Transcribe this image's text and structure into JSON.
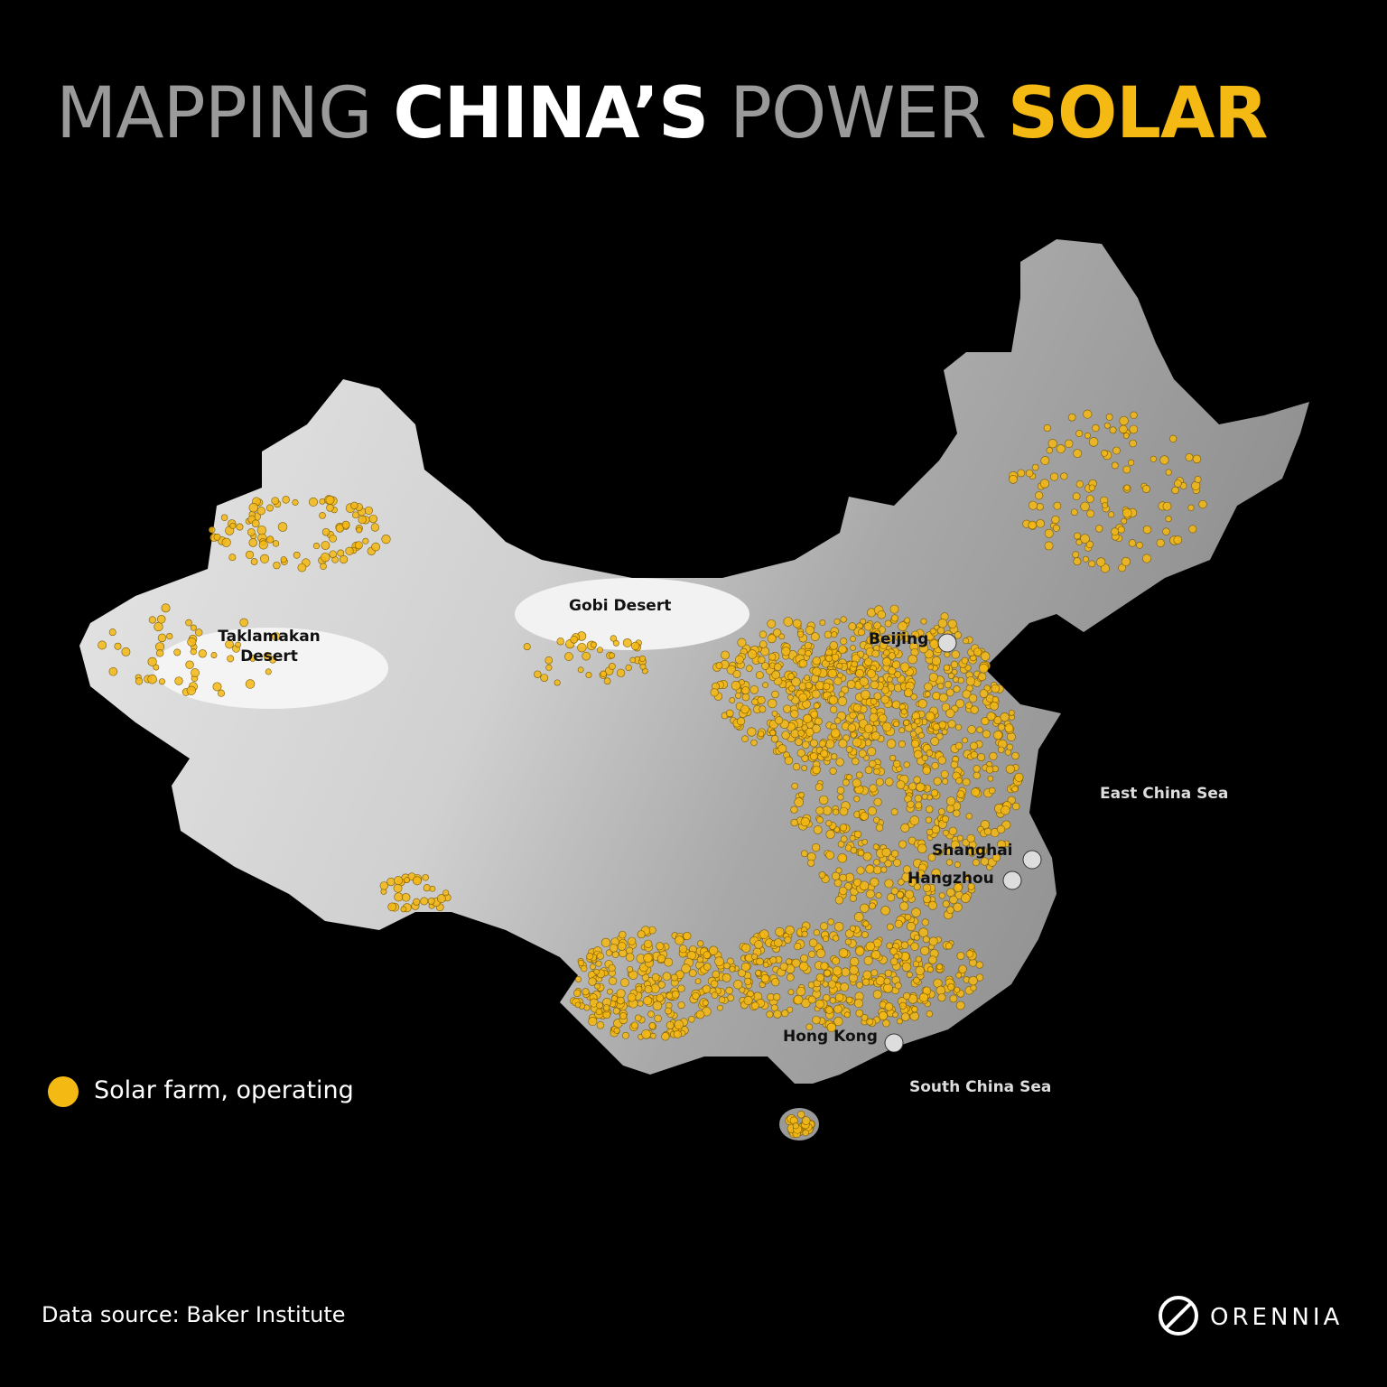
{
  "title": {
    "part1": "MAPPING",
    "part2": "CHINA’S",
    "part3": "POWER",
    "part4": "SOLAR"
  },
  "labels": {
    "taklamakan": "Taklamakan\nDesert",
    "gobi": "Gobi Desert",
    "beijing": "Beijing",
    "shanghai": "Shanghai",
    "hangzhou": "Hangzhou",
    "hong_kong": "Hong Kong",
    "east_china_sea": "East China Sea",
    "south_china_sea": "South China Sea"
  },
  "legend": "Solar farm, operating",
  "source": "Data source: Baker Institute",
  "brand": "ORENNIA"
}
